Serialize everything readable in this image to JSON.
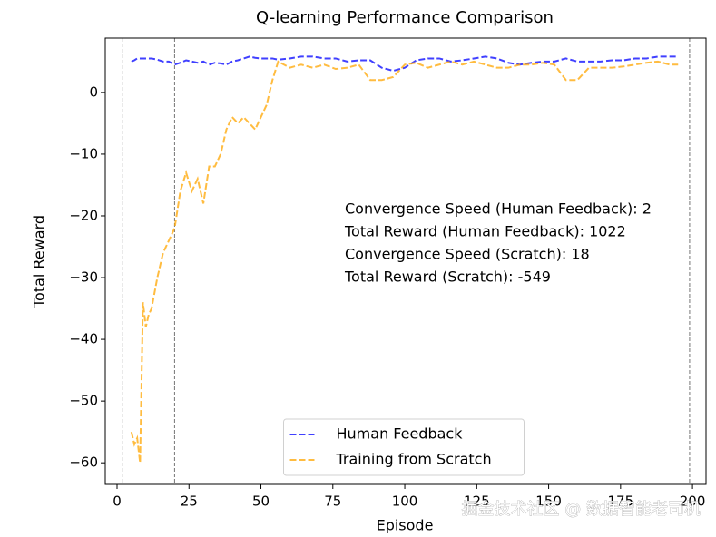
{
  "chart_data": {
    "type": "line",
    "title": "Q-learning Performance Comparison",
    "x_label": "Episode",
    "y_label": "Total Reward",
    "x": [
      5,
      6,
      7,
      8,
      9,
      10,
      11,
      12,
      14,
      16,
      18,
      20,
      22,
      24,
      26,
      28,
      30,
      32,
      34,
      36,
      38,
      40,
      42,
      44,
      46,
      48,
      50,
      52,
      54,
      56,
      60,
      64,
      68,
      72,
      76,
      80,
      84,
      88,
      92,
      96,
      100,
      104,
      108,
      112,
      116,
      120,
      124,
      128,
      132,
      136,
      140,
      144,
      148,
      152,
      156,
      160,
      164,
      168,
      172,
      176,
      180,
      184,
      188,
      192,
      195
    ],
    "series": [
      {
        "name": "Human Feedback",
        "color": "blue",
        "values": [
          5,
          5.2,
          5.5,
          5.5,
          5.5,
          5.5,
          5.5,
          5.5,
          5.3,
          5,
          5,
          4.5,
          4.8,
          5.2,
          5,
          4.8,
          5,
          4.5,
          4.8,
          4.7,
          4.5,
          5,
          5.2,
          5.5,
          5.8,
          5.6,
          5.5,
          5.5,
          5.5,
          5.3,
          5.5,
          5.8,
          5.8,
          5.5,
          5.5,
          5,
          5.2,
          5.2,
          4,
          3.5,
          4,
          5.2,
          5.5,
          5.5,
          5,
          5.2,
          5.5,
          5.8,
          5.5,
          4.8,
          4.5,
          4.8,
          5,
          5,
          5.5,
          5,
          5,
          5,
          5.2,
          5.2,
          5.5,
          5.5,
          5.8,
          5.8,
          5.8
        ]
      },
      {
        "name": "Training from Scratch",
        "color": "orange",
        "values": [
          -55,
          -57,
          -56,
          -60,
          -34,
          -38,
          -36,
          -35,
          -30,
          -26,
          -24,
          -22,
          -16,
          -13,
          -16,
          -14,
          -18,
          -12,
          -12,
          -10,
          -6,
          -4,
          -5,
          -4,
          -5,
          -6,
          -4,
          -2,
          2,
          5,
          4,
          4.5,
          4,
          4.5,
          3.8,
          4,
          4.5,
          2,
          2,
          2.5,
          4.5,
          4.8,
          4,
          4.5,
          5,
          4.5,
          5,
          4.5,
          4,
          4,
          4.5,
          4.5,
          4.8,
          4.5,
          2,
          2,
          4,
          4,
          4,
          4.2,
          4.5,
          4.8,
          5,
          4.5,
          4.5
        ]
      }
    ],
    "vlines": [
      2,
      20,
      199
    ],
    "xlim": [
      -4.1,
      204.7
    ],
    "ylim": [
      -63.5,
      8.8
    ],
    "xticks": [
      0,
      25,
      50,
      75,
      100,
      125,
      150,
      175,
      200
    ],
    "yticks": [
      {
        "value": -60,
        "label": "−60"
      },
      {
        "value": -50,
        "label": "−50"
      },
      {
        "value": -40,
        "label": "−40"
      },
      {
        "value": -30,
        "label": "−30"
      },
      {
        "value": -20,
        "label": "−20"
      },
      {
        "value": -10,
        "label": "−10"
      },
      0
    ],
    "annotations": [
      "Convergence Speed (Human Feedback): 2",
      "Total Reward (Human Feedback): 1022",
      "Convergence Speed (Scratch): 18",
      "Total Reward (Scratch): -549"
    ],
    "legend": "lower center",
    "watermark": "掘金技术社区 @ 数据智能老司机"
  }
}
